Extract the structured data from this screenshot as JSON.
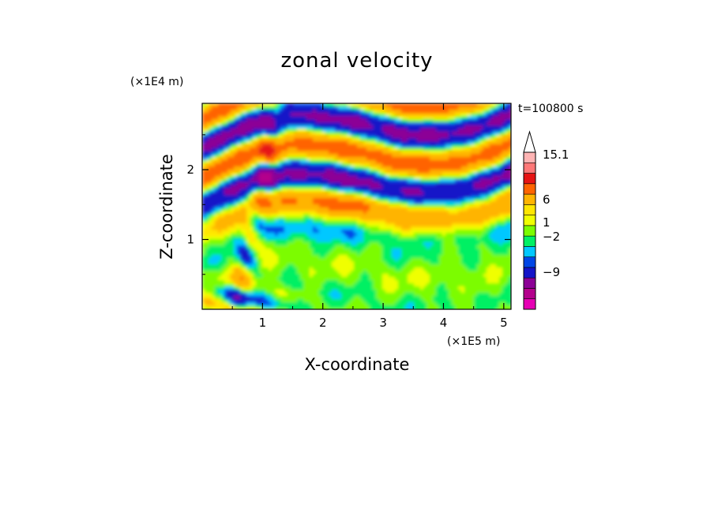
{
  "chart_data": {
    "type": "heatmap",
    "title": "zonal velocity",
    "xlabel": "X-coordinate",
    "ylabel": "Z-coordinate",
    "x_unit": "(×1E5 m)",
    "y_unit": "(×1E4 m)",
    "time_label": "t=100800 s",
    "xlim": [
      0,
      5.12
    ],
    "ylim": [
      0,
      2.95
    ],
    "x_ticks": [
      1,
      2,
      3,
      4,
      5
    ],
    "y_ticks": [
      1,
      2
    ],
    "colorbar": {
      "labels": [
        "15.1",
        "6",
        "1",
        "−2",
        "−9"
      ],
      "levels": [
        -15,
        -12,
        -9,
        -6,
        -3,
        -2,
        -1,
        0,
        1,
        2,
        3,
        6,
        9,
        12,
        15
      ],
      "colors": [
        "#e600b4",
        "#b4008c",
        "#8c0096",
        "#1414c8",
        "#0046e6",
        "#00c8ff",
        "#00f064",
        "#7cfc00",
        "#f0ff00",
        "#ffe600",
        "#ffb400",
        "#ff6400",
        "#e61414",
        "#ff7878",
        "#ffb4b4"
      ],
      "extend_max": true
    },
    "field_description": "2D contour of zonal velocity over the x–z domain"
  }
}
